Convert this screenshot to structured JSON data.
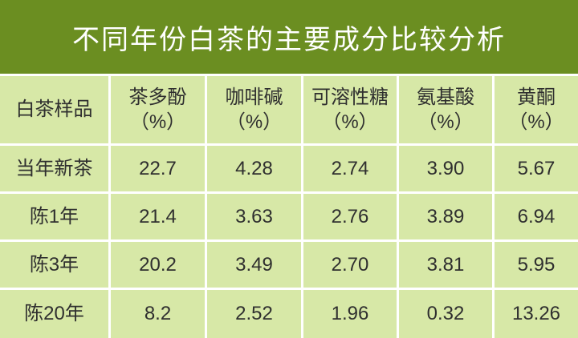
{
  "title": "不同年份白茶的主要成分比较分析",
  "table": {
    "columns": [
      {
        "name": "白茶样品"
      },
      {
        "name": "茶多酚",
        "unit": "（%）"
      },
      {
        "name": "咖啡碱",
        "unit": "（%）"
      },
      {
        "name": "可溶性糖",
        "unit": "（%）"
      },
      {
        "name": "氨基酸",
        "unit": "（%）"
      },
      {
        "name": "黄酮",
        "unit": "（%）"
      }
    ],
    "rows": [
      [
        "当年新茶",
        "22.7",
        "4.28",
        "2.74",
        "3.90",
        "5.67"
      ],
      [
        "陈1年",
        "21.4",
        "3.63",
        "2.76",
        "3.89",
        "6.94"
      ],
      [
        "陈3年",
        "20.2",
        "3.49",
        "2.70",
        "3.81",
        "5.95"
      ],
      [
        "陈20年",
        "8.2",
        "2.52",
        "1.96",
        "0.32",
        "13.26"
      ]
    ]
  }
}
